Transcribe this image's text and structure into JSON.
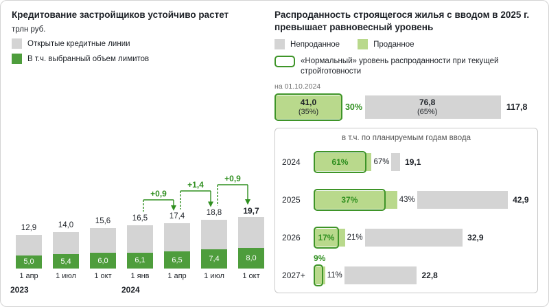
{
  "colors": {
    "gray_bar": "#d4d4d4",
    "green_solid": "#4e9d3c",
    "green_light": "#b9d98c",
    "green_outline": "#3e9428",
    "green_text": "#2f8f1f",
    "text_dark": "#1d2127",
    "text_gray": "#6e6e6e"
  },
  "left_chart": {
    "title": "Кредитование застройщиков устойчиво растет",
    "unit": "трлн руб.",
    "legend": [
      {
        "label": "Открытые кредитные линии",
        "swatch": "gray"
      },
      {
        "label": "В т.ч. выбранный объем лимитов",
        "swatch": "green"
      }
    ]
  },
  "right_chart": {
    "title": "Распроданность строящегося жилья с вводом в 2025 г. превышает равновесный уровень",
    "legend": [
      {
        "label": "Непроданное",
        "swatch": "gray"
      },
      {
        "label": "Проданное",
        "swatch": "green_light"
      }
    ],
    "normal_level_legend": "«Нормальный» уровень распроданности при текущей стройготовности",
    "as_of": "на 01.10.2024"
  },
  "chart_data": [
    {
      "id": "developer_credit",
      "type": "bar",
      "title": "Кредитование застройщиков устойчиво растет",
      "ylabel": "трлн руб.",
      "ylim": [
        0,
        20
      ],
      "categories": [
        "1 апр",
        "1 июл",
        "1 окт",
        "1 янв",
        "1 апр",
        "1 июл",
        "1 окт"
      ],
      "year_groups": [
        {
          "label": "2023",
          "start_index": 0
        },
        {
          "label": "2024",
          "start_index": 3
        }
      ],
      "series": [
        {
          "name": "Открытые кредитные линии",
          "values": [
            12.9,
            14.0,
            15.6,
            16.5,
            17.4,
            18.8,
            19.7
          ],
          "labels": [
            "12,9",
            "14,0",
            "15,6",
            "16,5",
            "17,4",
            "18,8",
            "19,7"
          ]
        },
        {
          "name": "В т.ч. выбранный объем лимитов",
          "values": [
            5.0,
            5.4,
            6.0,
            6.1,
            6.5,
            7.4,
            8.0
          ],
          "labels": [
            "5,0",
            "5,4",
            "6,0",
            "6,1",
            "6,5",
            "7,4",
            "8,0"
          ]
        }
      ],
      "annotations": [
        {
          "label": "+0,9",
          "from_index": 3,
          "to_index": 4
        },
        {
          "label": "+1,4",
          "from_index": 4,
          "to_index": 5
        },
        {
          "label": "+0,9",
          "from_index": 5,
          "to_index": 6
        }
      ]
    },
    {
      "id": "sold_share",
      "type": "bar",
      "title": "Распроданность строящегося жилья с вводом в 2025 г. превышает равновесный уровень",
      "as_of": "на 01.10.2024",
      "total_bar": {
        "sold_value": 41.0,
        "sold_value_label": "41,0",
        "sold_pct": 35,
        "sold_pct_label": "(35%)",
        "normal_pct": 30,
        "normal_pct_label": "30%",
        "unsold_value": 76.8,
        "unsold_value_label": "76,8",
        "unsold_pct": 65,
        "unsold_pct_label": "(65%)",
        "total": 117.8,
        "total_label": "117,8"
      },
      "breakdown_title": "в т.ч. по планируемым годам ввода",
      "rows": [
        {
          "year": "2024",
          "normal_pct": 61,
          "normal_label": "61%",
          "sold_pct": 67,
          "sold_label": "67%",
          "total": 19.1,
          "total_label": "19,1",
          "normal_label_above": false
        },
        {
          "year": "2025",
          "normal_pct": 37,
          "normal_label": "37%",
          "sold_pct": 43,
          "sold_label": "43%",
          "total": 42.9,
          "total_label": "42,9",
          "normal_label_above": false
        },
        {
          "year": "2026",
          "normal_pct": 17,
          "normal_label": "17%",
          "sold_pct": 21,
          "sold_label": "21%",
          "total": 32.9,
          "total_label": "32,9",
          "normal_label_above": false
        },
        {
          "year": "2027+",
          "normal_pct": 9,
          "normal_label": "9%",
          "sold_pct": 11,
          "sold_label": "11%",
          "total": 22.8,
          "total_label": "22,8",
          "normal_label_above": true
        }
      ]
    }
  ]
}
